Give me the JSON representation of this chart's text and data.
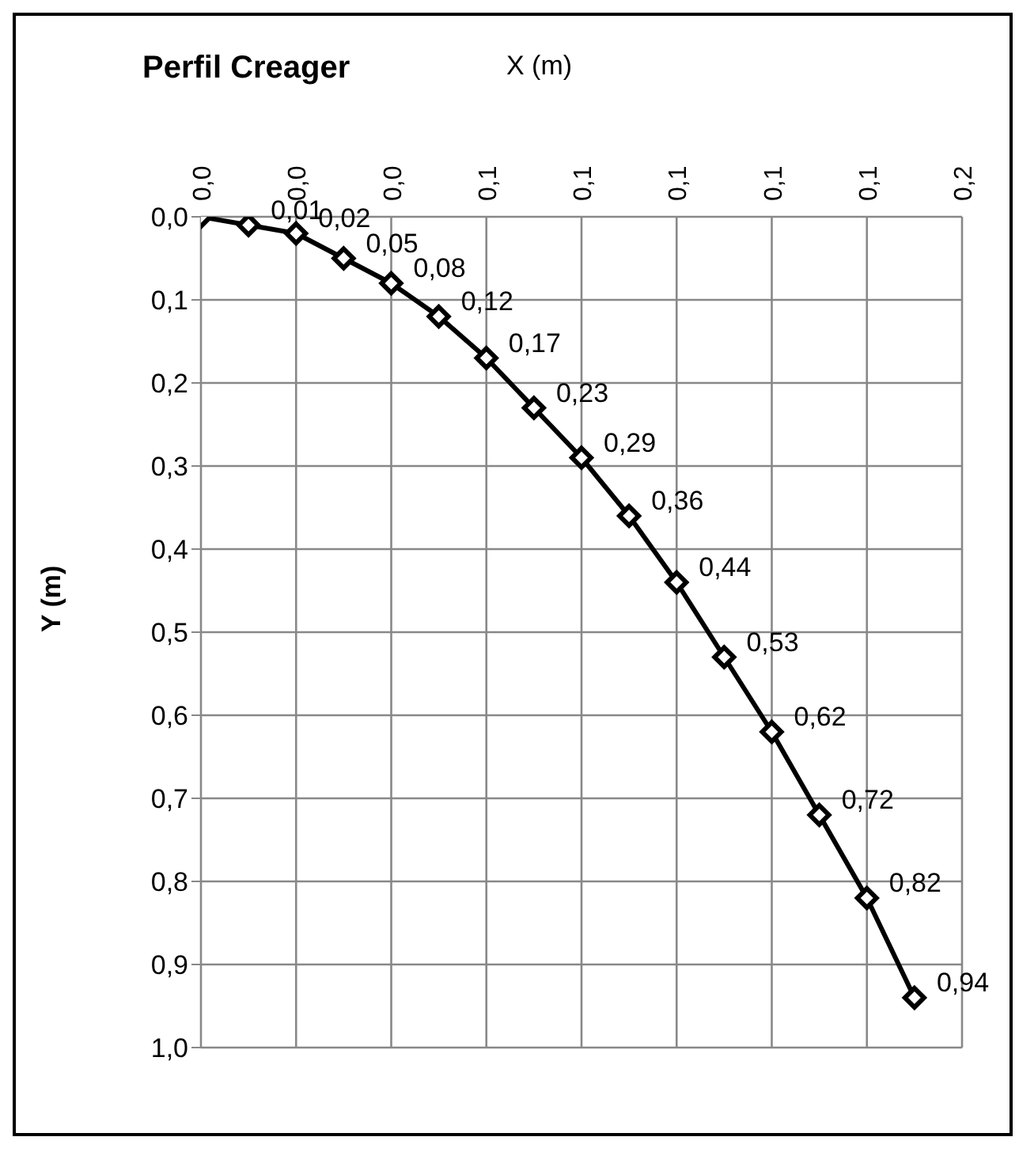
{
  "chart_data": {
    "type": "line",
    "title": "Perfil Creager",
    "xlabel": "X (m)",
    "ylabel": "Y (m)",
    "x": [
      0,
      0.01,
      0.02,
      0.03,
      0.04,
      0.05,
      0.06,
      0.07,
      0.08,
      0.09,
      0.1,
      0.11,
      0.12,
      0.13,
      0.14,
      0.15
    ],
    "series": [
      {
        "color": "#000000",
        "values": [
          0,
          0.01,
          0.02,
          0.05,
          0.08,
          0.12,
          0.17,
          0.23,
          0.29,
          0.36,
          0.44,
          0.53,
          0.62,
          0.72,
          0.82,
          0.94
        ],
        "value_labels": [
          null,
          "0,01",
          "0,02",
          "0,05",
          "0,08",
          "0,12",
          "0,17",
          "0,23",
          "0,29",
          "0,36",
          "0,44",
          "0,53",
          "0,62",
          "0,72",
          "0,82",
          "0,94"
        ]
      }
    ],
    "xlim": [
      0,
      0.16
    ],
    "xticks": [
      {
        "value": 0,
        "label": "0,0"
      },
      {
        "value": 0.02,
        "label": "0,0"
      },
      {
        "value": 0.04,
        "label": "0,0"
      },
      {
        "value": 0.06,
        "label": "0,1"
      },
      {
        "value": 0.08,
        "label": "0,1"
      },
      {
        "value": 0.1,
        "label": "0,1"
      },
      {
        "value": 0.12,
        "label": "0,1"
      },
      {
        "value": 0.14,
        "label": "0,1"
      },
      {
        "value": 0.16,
        "label": "0,2"
      }
    ],
    "ylim": [
      1,
      0
    ],
    "yticks": [
      {
        "value": 0,
        "label": "0,0"
      },
      {
        "value": 0.1,
        "label": "0,1"
      },
      {
        "value": 0.2,
        "label": "0,2"
      },
      {
        "value": 0.3,
        "label": "0,3"
      },
      {
        "value": 0.4,
        "label": "0,4"
      },
      {
        "value": 0.5,
        "label": "0,5"
      },
      {
        "value": 0.6,
        "label": "0,6"
      },
      {
        "value": 0.7,
        "label": "0,7"
      },
      {
        "value": 0.8,
        "label": "0,8"
      },
      {
        "value": 0.9,
        "label": "0,9"
      },
      {
        "value": 1,
        "label": "1,0"
      }
    ],
    "grid": true,
    "marker": "diamond",
    "line_style": "solid",
    "legend": false
  }
}
